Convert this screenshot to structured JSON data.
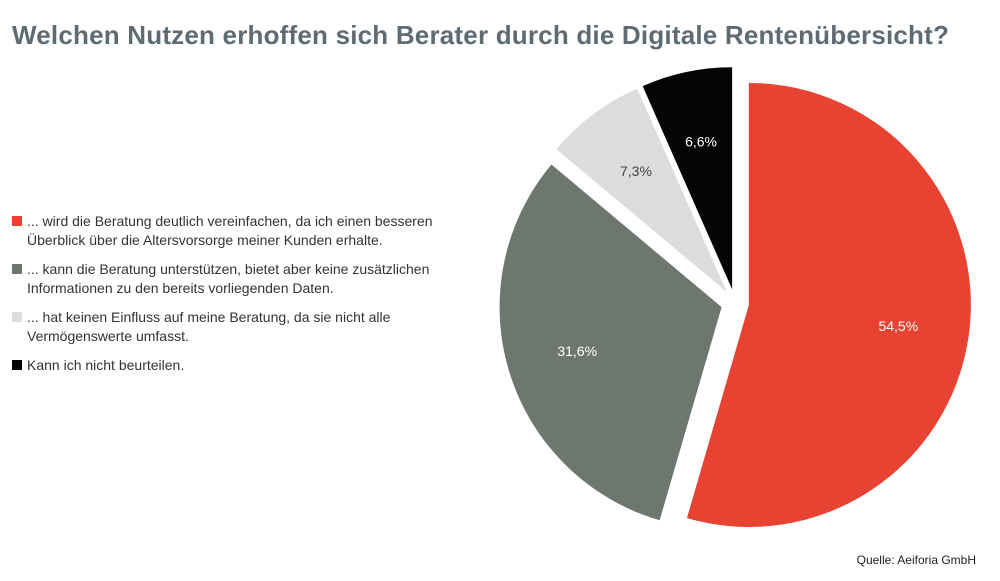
{
  "title": "Welchen Nutzen erhoffen sich Berater durch die Digitale Rentenübersicht?",
  "source": "Quelle: Aeiforia GmbH",
  "chart_data": {
    "type": "pie",
    "title": "Welchen Nutzen erhoffen sich Berater durch die Digitale Rentenübersicht?",
    "legend_position": "left",
    "exploded": true,
    "slices": [
      {
        "name": "... wird die Beratung deutlich vereinfachen, da ich einen besseren Überblick über die Altersvorsorge meiner Kunden erhalte.",
        "value": 54.5,
        "label": "54,5%",
        "color": "#e84332",
        "label_color": "#ffffff"
      },
      {
        "name": "... kann die Beratung unterstützen, bietet aber keine zusätzlichen Informationen zu den bereits vorliegenden Daten.",
        "value": 31.6,
        "label": "31,6%",
        "color": "#6e7670",
        "label_color": "#ffffff"
      },
      {
        "name": "... hat keinen Einfluss auf meine Beratung, da sie nicht alle Vermögenswerte umfasst.",
        "value": 7.3,
        "label": "7,3%",
        "color": "#dcdcdc",
        "label_color": "#444444"
      },
      {
        "name": "Kann ich nicht beurteilen.",
        "value": 6.6,
        "label": "6,6%",
        "color": "#050505",
        "label_color": "#ffffff"
      }
    ]
  }
}
